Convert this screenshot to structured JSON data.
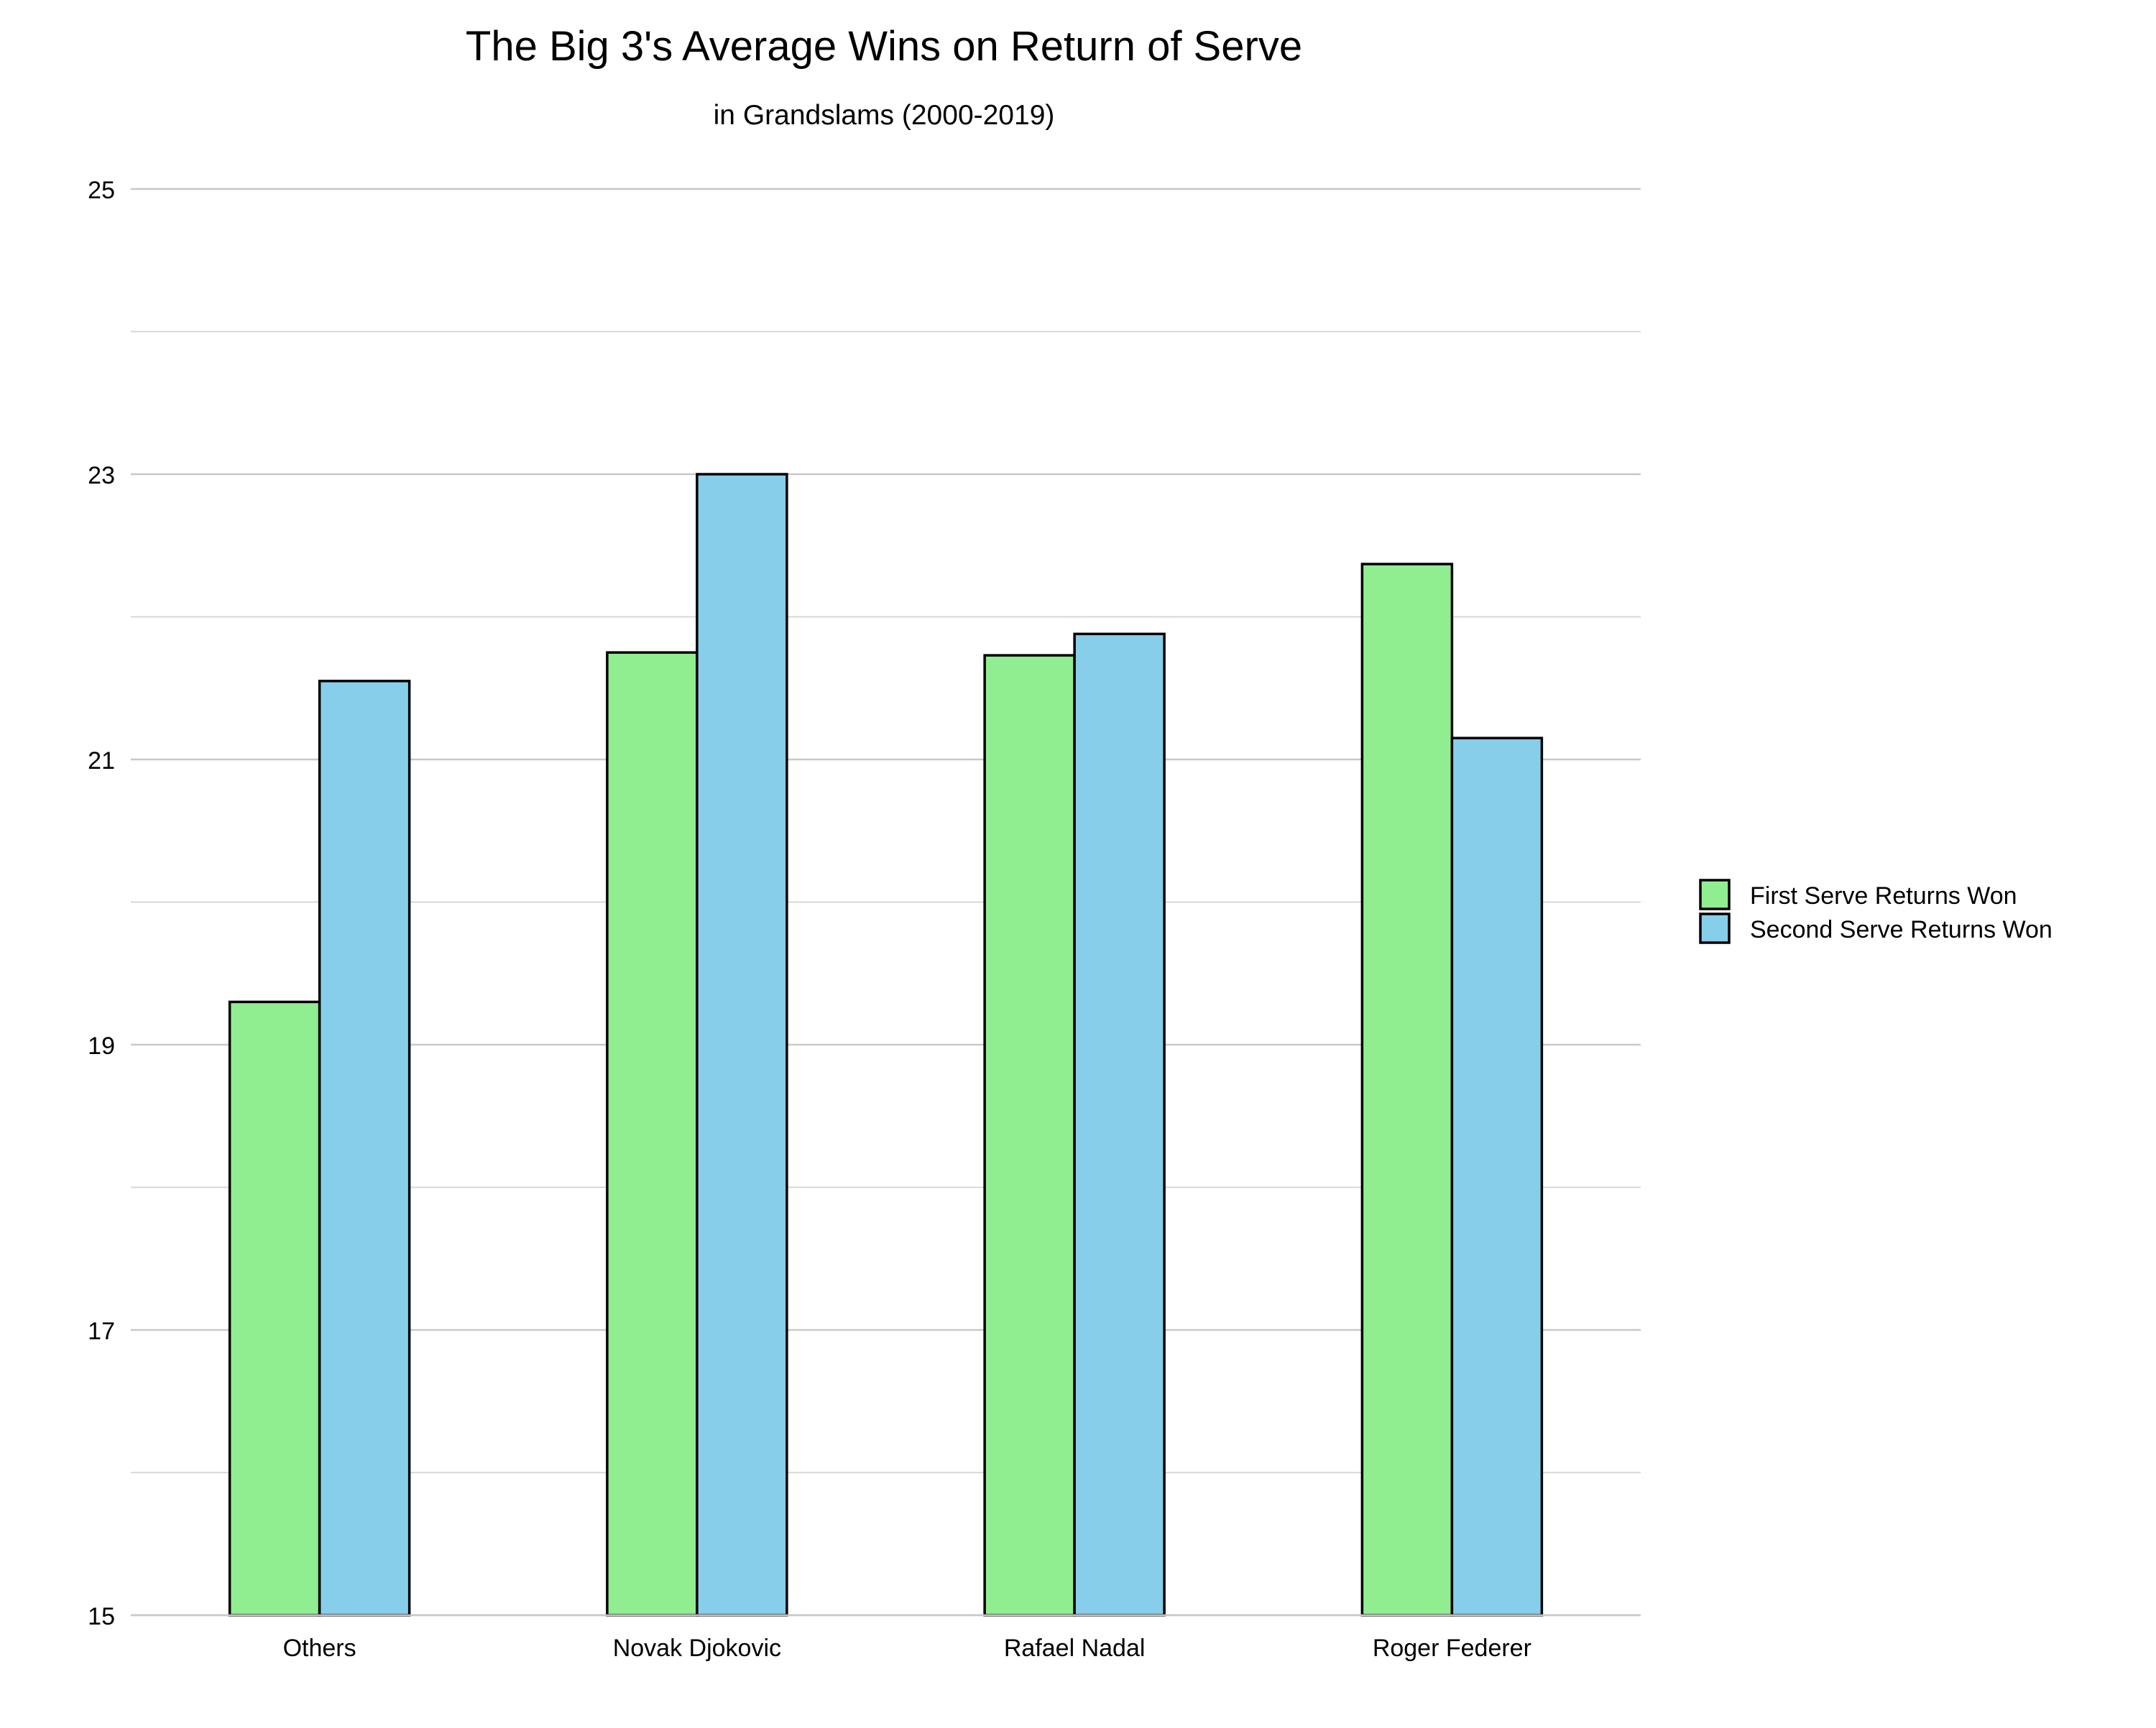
{
  "chart_data": {
    "type": "bar",
    "title": "The Big 3's Average Wins on Return of Serve",
    "subtitle": "in Grandslams (2000-2019)",
    "xlabel": "",
    "ylabel": "",
    "categories": [
      "Others",
      "Novak Djokovic",
      "Rafael Nadal",
      "Roger Federer"
    ],
    "series": [
      {
        "name": "First Serve Returns Won",
        "color": "#90EE90",
        "values": [
          19.3,
          21.75,
          21.73,
          22.37
        ]
      },
      {
        "name": "Second Serve Returns Won",
        "color": "#87CEEB",
        "values": [
          21.55,
          23.0,
          21.88,
          21.15
        ]
      }
    ],
    "ylim": [
      15,
      25
    ],
    "yticks": [
      "15",
      "17",
      "19",
      "21",
      "23",
      "25"
    ],
    "grid": true,
    "legend_position": "right"
  }
}
